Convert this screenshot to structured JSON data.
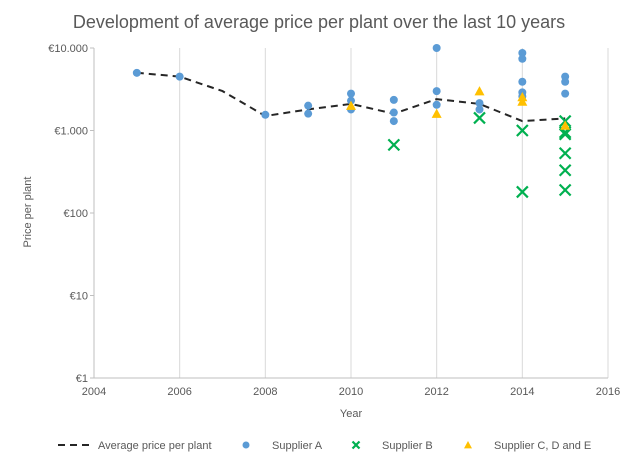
{
  "chart_data": {
    "type": "scatter",
    "title": "Development of average price per plant over the last 10 years",
    "xlabel": "Year",
    "ylabel": "Price per plant",
    "xlim": [
      2004,
      2016
    ],
    "x_ticks": [
      2004,
      2006,
      2008,
      2010,
      2012,
      2014,
      2016
    ],
    "ylim": [
      1,
      10000
    ],
    "y_scale": "log",
    "y_ticks": [
      {
        "value": 1,
        "label": "€1"
      },
      {
        "value": 10,
        "label": "€10"
      },
      {
        "value": 100,
        "label": "€100"
      },
      {
        "value": 1000,
        "label": "€1.000"
      },
      {
        "value": 10000,
        "label": "€10.000"
      }
    ],
    "grid": "vertical",
    "legend_position": "bottom",
    "series": [
      {
        "name": "Average price per plant",
        "kind": "line",
        "style": "dashed",
        "color": "#262626",
        "points": [
          [
            2005,
            5000
          ],
          [
            2006,
            4500
          ],
          [
            2007,
            3000
          ],
          [
            2008,
            1500
          ],
          [
            2009,
            1800
          ],
          [
            2010,
            2100
          ],
          [
            2011,
            1600
          ],
          [
            2012,
            2400
          ],
          [
            2013,
            2100
          ],
          [
            2014,
            1300
          ],
          [
            2015,
            1400
          ]
        ]
      },
      {
        "name": "Supplier A",
        "kind": "marker",
        "marker": "circle",
        "color": "#5B9BD5",
        "points": [
          [
            2005,
            5000
          ],
          [
            2006,
            4500
          ],
          [
            2008,
            1550
          ],
          [
            2009,
            2000
          ],
          [
            2009,
            1600
          ],
          [
            2010,
            2800
          ],
          [
            2010,
            2300
          ],
          [
            2010,
            1800
          ],
          [
            2011,
            2350
          ],
          [
            2011,
            1650
          ],
          [
            2011,
            1300
          ],
          [
            2012,
            10000
          ],
          [
            2012,
            3000
          ],
          [
            2012,
            2050
          ],
          [
            2013,
            2150
          ],
          [
            2013,
            1800
          ],
          [
            2014,
            8700
          ],
          [
            2014,
            7400
          ],
          [
            2014,
            3900
          ],
          [
            2014,
            2900
          ],
          [
            2014,
            2600
          ],
          [
            2015,
            4500
          ],
          [
            2015,
            3900
          ],
          [
            2015,
            2800
          ]
        ]
      },
      {
        "name": "Supplier B",
        "kind": "marker",
        "marker": "x",
        "color": "#00B050",
        "points": [
          [
            2011,
            670
          ],
          [
            2013,
            1420
          ],
          [
            2014,
            1000
          ],
          [
            2014,
            180
          ],
          [
            2015,
            1300
          ],
          [
            2015,
            950
          ],
          [
            2015,
            900
          ],
          [
            2015,
            530
          ],
          [
            2015,
            330
          ],
          [
            2015,
            190
          ]
        ]
      },
      {
        "name": "Supplier C, D and E",
        "kind": "marker",
        "marker": "triangle",
        "color": "#FFC000",
        "points": [
          [
            2010,
            2000
          ],
          [
            2012,
            1600
          ],
          [
            2013,
            3000
          ],
          [
            2014,
            2550
          ],
          [
            2014,
            2250
          ],
          [
            2015,
            1150
          ]
        ]
      }
    ]
  }
}
